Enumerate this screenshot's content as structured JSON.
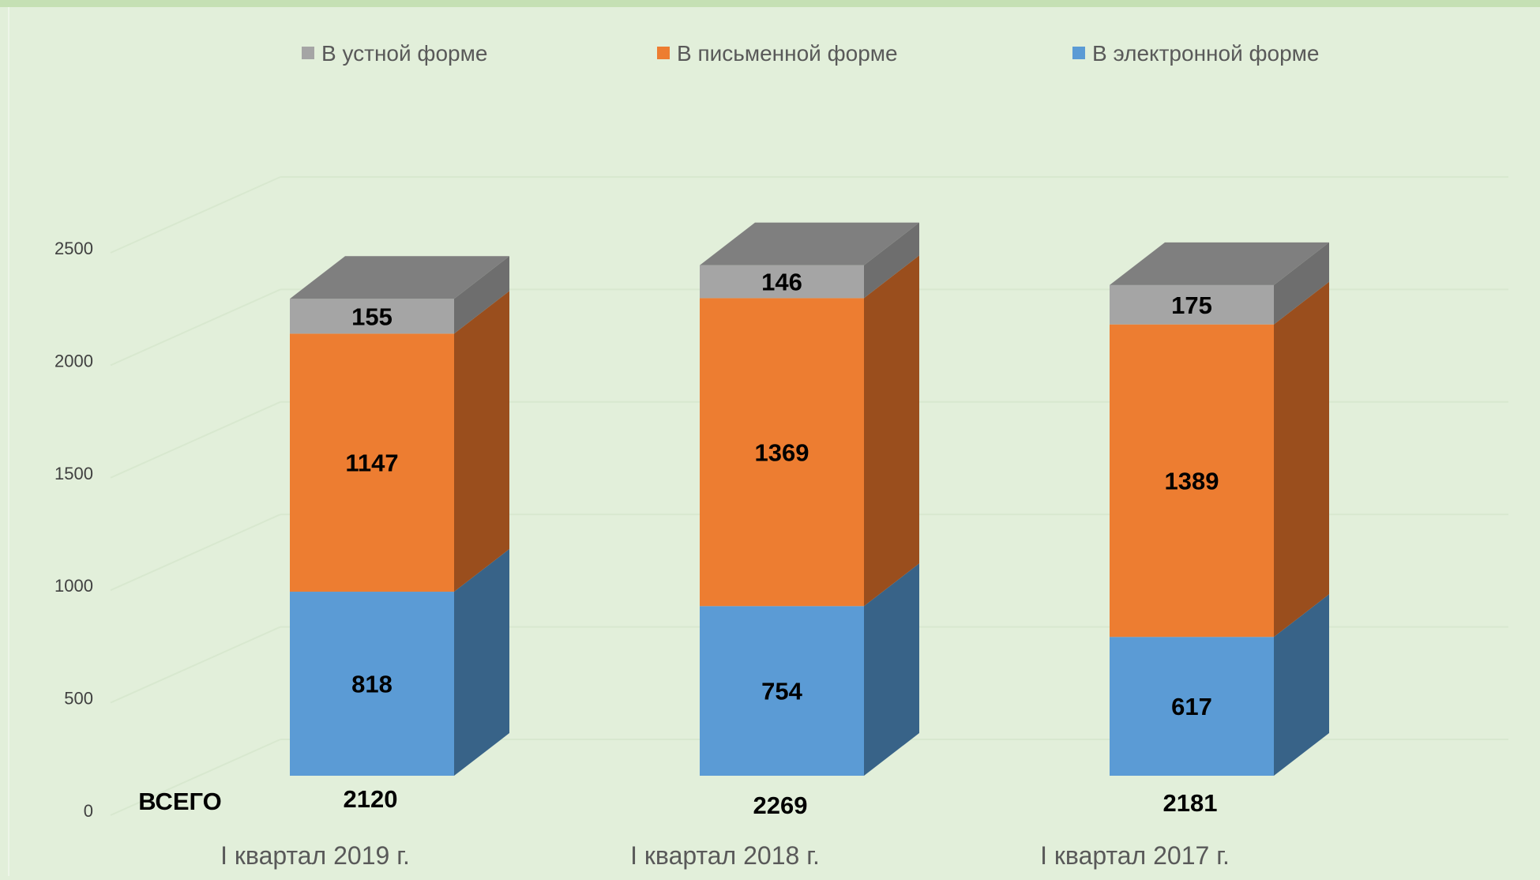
{
  "chart_data": {
    "type": "bar",
    "stacked": true,
    "three_d": true,
    "categories": [
      "I квартал 2019 г.",
      "I квартал 2018 г.",
      "I квартал 2017 г."
    ],
    "series": [
      {
        "name": "В электронной форме",
        "values": [
          818,
          754,
          617
        ],
        "color": "#5b9bd5",
        "side_color": "#386388"
      },
      {
        "name": "В письменной форме",
        "values": [
          1147,
          1369,
          1389
        ],
        "color": "#ed7d31",
        "side_color": "#9a4e1d"
      },
      {
        "name": "В устной форме",
        "values": [
          155,
          146,
          175
        ],
        "color": "#a5a5a5",
        "side_color": "#6e6e6e",
        "top_color": "#7f7f7f"
      }
    ],
    "totals_label": "ВСЕГО",
    "totals": [
      2120,
      2269,
      2181
    ],
    "yticks": [
      0,
      500,
      1000,
      1500,
      2000,
      2500
    ],
    "ylim": [
      0,
      2500
    ],
    "legend": {
      "position": "top",
      "order": [
        "В устной форме",
        "В письменной форме",
        "В электронной форме"
      ]
    },
    "grid": true,
    "colors": {
      "background": "#e2efda",
      "gridline": "#d8e8cf",
      "axis_text": "#404040",
      "category_text": "#595959",
      "frame_top": "#c5e0b4"
    }
  }
}
